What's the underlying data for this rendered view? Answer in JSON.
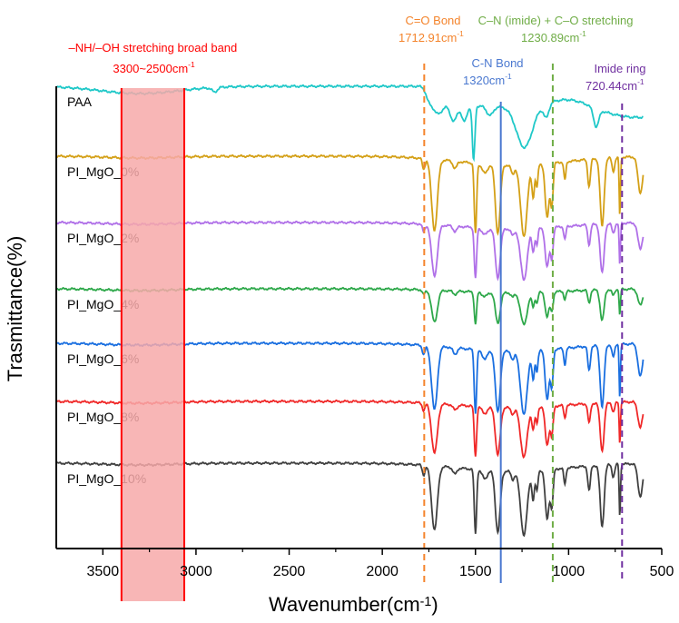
{
  "chart_data": {
    "type": "line",
    "title": "",
    "xlabel": "Wavenumber(cm",
    "xlabel_sup": "-1",
    "xlabel_close": ")",
    "ylabel": "Trasmittance(%)",
    "xlim": [
      3750,
      500
    ],
    "x_reversed": true,
    "xticks": [
      3500,
      3000,
      2500,
      2000,
      1500,
      1000,
      500
    ],
    "ylim": [
      0,
      100
    ],
    "y_units": "a.u. (offset spectra)",
    "grid": false,
    "x_range_measured": [
      3750,
      600
    ],
    "pi_peaks": [
      {
        "wn": 1778,
        "depth": 2.4,
        "w": 10
      },
      {
        "wn": 1720,
        "depth": 15.6,
        "w": 22
      },
      {
        "wn": 1610,
        "depth": 1.6,
        "w": 15
      },
      {
        "wn": 1500,
        "depth": 15.6,
        "w": 9
      },
      {
        "wn": 1450,
        "depth": 2,
        "w": 20
      },
      {
        "wn": 1380,
        "depth": 15,
        "w": 18
      },
      {
        "wn": 1300,
        "depth": 2,
        "w": 12
      },
      {
        "wn": 1240,
        "depth": 15.6,
        "w": 25
      },
      {
        "wn": 1190,
        "depth": 7,
        "w": 10
      },
      {
        "wn": 1170,
        "depth": 5,
        "w": 8
      },
      {
        "wn": 1115,
        "depth": 12,
        "w": 15
      },
      {
        "wn": 1090,
        "depth": 9,
        "w": 10
      },
      {
        "wn": 1020,
        "depth": 4,
        "w": 8
      },
      {
        "wn": 890,
        "depth": 6,
        "w": 10
      },
      {
        "wn": 820,
        "depth": 15,
        "w": 15
      },
      {
        "wn": 760,
        "depth": 3,
        "w": 10
      },
      {
        "wn": 725,
        "depth": 13,
        "w": 5
      },
      {
        "wn": 615,
        "depth": 8,
        "w": 18
      },
      {
        "wn": 1300,
        "depth": 2,
        "w": 400
      }
    ],
    "series": [
      {
        "name": "PAA",
        "color": "#1fc8c8",
        "baseline": 101.8,
        "step": 4,
        "peaks": [
          {
            "wn": 3300,
            "depth": 1.6,
            "w": 300
          },
          {
            "wn": 2900,
            "depth": 1,
            "w": 20
          },
          {
            "wn": 1700,
            "depth": 2,
            "w": 30
          },
          {
            "wn": 1617,
            "depth": 3.5,
            "w": 25
          },
          {
            "wn": 1560,
            "depth": 3.5,
            "w": 20
          },
          {
            "wn": 1510,
            "depth": 12,
            "w": 10
          },
          {
            "wn": 1422,
            "depth": 2,
            "w": 25
          },
          {
            "wn": 1237,
            "depth": 9,
            "w": 60
          },
          {
            "wn": 1120,
            "depth": 3,
            "w": 20
          },
          {
            "wn": 1000,
            "depth": -2,
            "w": 150
          },
          {
            "wn": 852,
            "depth": 4,
            "w": 20
          },
          {
            "wn": 650,
            "depth": 1.5,
            "w": 200
          }
        ]
      },
      {
        "name": "PI_MgO_0%",
        "color": "#d4a017",
        "baseline": 86.4,
        "intensity": 1.0
      },
      {
        "name": "PI_MgO_2%",
        "color": "#b070e8",
        "baseline": 71.8,
        "intensity": 0.72
      },
      {
        "name": "PI_MgO_4%",
        "color": "#2ea84a",
        "baseline": 57.2,
        "intensity": 0.45
      },
      {
        "name": "PI_MgO_6%",
        "color": "#1a6fe0",
        "baseline": 45.2,
        "intensity": 0.9
      },
      {
        "name": "PI_MgO_8%",
        "color": "#f02828",
        "baseline": 32.4,
        "intensity": 0.7
      },
      {
        "name": "PI_MgO_10%",
        "color": "#404040",
        "baseline": 18.8,
        "intensity": 0.9
      }
    ],
    "annotations": {
      "band": {
        "label": "–NH/–OH stretching broad band",
        "range_label": "3300~2500cm",
        "sup": "-1",
        "x_from": 3400,
        "x_to": 3063,
        "color": "#ff0000",
        "fill": "#f7a9a9"
      },
      "lines": [
        {
          "title": "C=O Bond",
          "value": "1712.91cm",
          "sup": "-1",
          "x": 1775,
          "color": "#f4842c",
          "style": "dashed"
        },
        {
          "title": "C-N Bond",
          "value": "1320cm",
          "sup": "-1",
          "x": 1364,
          "color": "#4a78d0",
          "style": "solid"
        },
        {
          "title": "C–N (imide) + C–O stretching",
          "value": "1230.89cm",
          "sup": "-1",
          "x": 1085,
          "color": "#70ad47",
          "style": "dashed"
        },
        {
          "title": "Imide ring",
          "value": "720.44cm",
          "sup": "-1",
          "x": 713,
          "color": "#7030a0",
          "style": "dashed"
        }
      ]
    }
  }
}
